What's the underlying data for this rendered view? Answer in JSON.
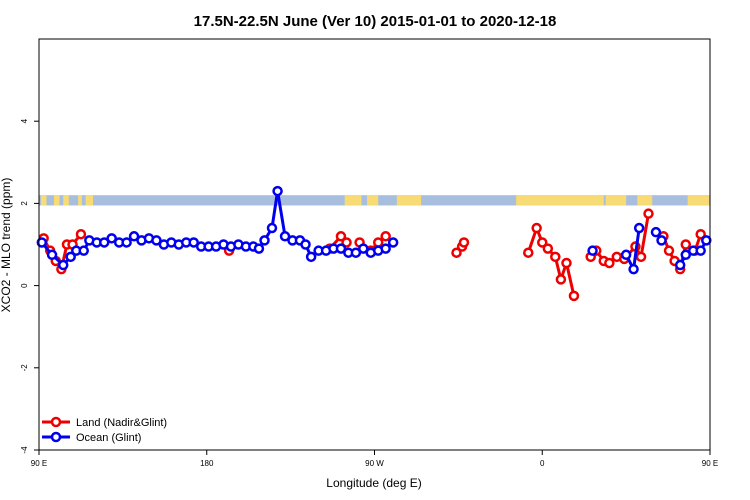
{
  "chart_data": {
    "type": "line",
    "title": "17.5N-22.5N June (Ver 10)   2015-01-01 to 2020-12-18",
    "xlabel": "Longitude (deg E)",
    "ylabel": "XCO2 - MLO trend (ppm)",
    "xlim": [
      90,
      450
    ],
    "ylim": [
      -4,
      6
    ],
    "x_ticks": [
      {
        "value": 90,
        "label": "90 E"
      },
      {
        "value": 180,
        "label": "180"
      },
      {
        "value": 270,
        "label": "90 W"
      },
      {
        "value": 360,
        "label": "0"
      },
      {
        "value": 450,
        "label": "90 E"
      },
      {
        "value": 540,
        "label": "180"
      }
    ],
    "y_ticks": [
      -4,
      -2,
      0,
      2,
      4
    ],
    "legend": [
      {
        "label": "Land (Nadir&Glint)",
        "color": "#ee0000"
      },
      {
        "label": "Ocean (Glint)",
        "color": "#0000ee"
      }
    ],
    "land_mask_band": {
      "y_range": [
        1.95,
        2.2
      ],
      "ocean_color": "#a7bedf",
      "land_color": "#f8db74",
      "land_segments": [
        [
          91,
          94
        ],
        [
          98,
          101
        ],
        [
          103,
          106
        ],
        [
          111,
          113
        ],
        [
          115,
          119
        ],
        [
          254,
          263
        ],
        [
          266,
          272
        ],
        [
          282,
          295
        ],
        [
          346,
          393
        ],
        [
          394,
          405
        ],
        [
          411,
          419
        ],
        [
          438,
          458
        ]
      ]
    },
    "series": [
      {
        "name": "Land (Nadir&Glint)",
        "color": "#ee0000",
        "points": [
          [
            92.5,
            1.15
          ],
          [
            96,
            0.85
          ],
          [
            99,
            0.6
          ],
          [
            102,
            0.4
          ],
          [
            105,
            1.0
          ],
          [
            108,
            1.0
          ],
          [
            112.5,
            1.25
          ],
          [
            192,
            0.85
          ],
          [
            246,
            0.9
          ],
          [
            252,
            1.2
          ],
          [
            255,
            1.05
          ],
          [
            262,
            1.05
          ],
          [
            268,
            0.85
          ],
          [
            272,
            1.05
          ],
          [
            276,
            1.2
          ],
          [
            314,
            0.8
          ],
          [
            317,
            0.95
          ],
          [
            318,
            1.05
          ],
          [
            352.5,
            0.8
          ],
          [
            357,
            1.4
          ],
          [
            360,
            1.05
          ],
          [
            363,
            0.9
          ],
          [
            367,
            0.7
          ],
          [
            370,
            0.15
          ],
          [
            373,
            0.55
          ],
          [
            377,
            -0.25
          ],
          [
            386,
            0.7
          ],
          [
            389,
            0.85
          ],
          [
            393,
            0.6
          ],
          [
            396,
            0.55
          ],
          [
            400,
            0.7
          ],
          [
            404,
            0.65
          ],
          [
            410,
            0.95
          ],
          [
            413,
            0.7
          ],
          [
            417,
            1.75
          ],
          [
            425,
            1.2
          ],
          [
            428,
            0.85
          ],
          [
            431,
            0.6
          ],
          [
            434,
            0.4
          ],
          [
            437,
            1.0
          ],
          [
            442,
            0.85
          ],
          [
            445,
            1.25
          ]
        ]
      },
      {
        "name": "Ocean (Glint)",
        "color": "#0000ee",
        "points": [
          [
            91.5,
            1.05
          ],
          [
            97,
            0.75
          ],
          [
            103,
            0.5
          ],
          [
            107,
            0.7
          ],
          [
            110,
            0.85
          ],
          [
            114,
            0.85
          ],
          [
            117,
            1.1
          ],
          [
            121,
            1.05
          ],
          [
            125,
            1.05
          ],
          [
            129,
            1.15
          ],
          [
            133,
            1.05
          ],
          [
            137,
            1.05
          ],
          [
            141,
            1.2
          ],
          [
            145,
            1.1
          ],
          [
            149,
            1.15
          ],
          [
            153,
            1.1
          ],
          [
            157,
            1.0
          ],
          [
            161,
            1.05
          ],
          [
            165,
            1.0
          ],
          [
            169,
            1.05
          ],
          [
            173,
            1.05
          ],
          [
            177,
            0.95
          ],
          [
            181,
            0.95
          ],
          [
            185,
            0.95
          ],
          [
            189,
            1.0
          ],
          [
            193,
            0.95
          ],
          [
            197,
            1.0
          ],
          [
            201,
            0.95
          ],
          [
            205,
            0.95
          ],
          [
            208,
            0.9
          ],
          [
            211,
            1.1
          ],
          [
            215,
            1.4
          ],
          [
            218,
            2.3
          ],
          [
            222,
            1.2
          ],
          [
            226,
            1.1
          ],
          [
            230,
            1.1
          ],
          [
            233,
            1.0
          ],
          [
            236,
            0.7
          ],
          [
            240,
            0.85
          ],
          [
            244,
            0.85
          ],
          [
            248,
            0.9
          ],
          [
            252,
            0.9
          ],
          [
            256,
            0.8
          ],
          [
            260,
            0.8
          ],
          [
            264,
            0.9
          ],
          [
            268,
            0.8
          ],
          [
            272,
            0.85
          ],
          [
            276,
            0.9
          ],
          [
            280,
            1.05
          ],
          [
            387,
            0.85
          ],
          [
            405,
            0.75
          ],
          [
            409,
            0.4
          ],
          [
            412,
            1.4
          ],
          [
            421,
            1.3
          ],
          [
            424,
            1.1
          ],
          [
            434,
            0.5
          ],
          [
            437,
            0.75
          ],
          [
            441,
            0.85
          ],
          [
            445,
            0.85
          ],
          [
            448,
            1.1
          ],
          [
            452,
            1.05
          ],
          [
            456,
            1.1
          ],
          [
            460,
            1.2
          ],
          [
            464,
            1.1
          ],
          [
            468,
            1.1
          ],
          [
            472,
            1.2
          ],
          [
            476,
            1.15
          ],
          [
            480,
            1.15
          ],
          [
            484,
            1.1
          ],
          [
            488,
            1.0
          ]
        ]
      }
    ]
  }
}
